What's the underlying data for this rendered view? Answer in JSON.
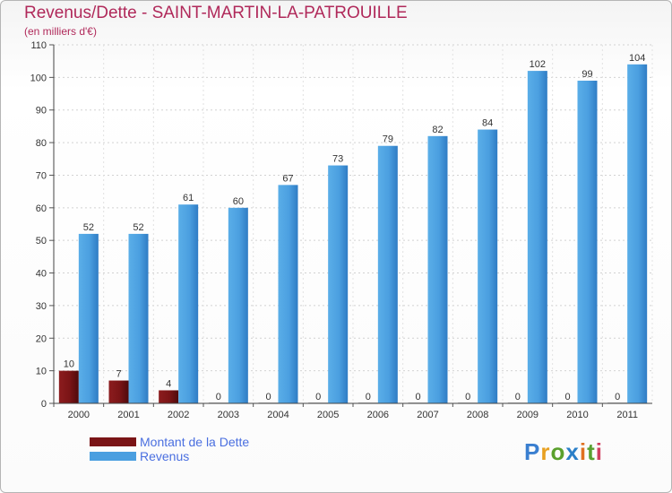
{
  "chart_data": {
    "type": "bar",
    "title": "Revenus/Dette - SAINT-MARTIN-LA-PATROUILLE",
    "subtitle": "(en milliers d'€)",
    "xlabel": "",
    "ylabel": "",
    "categories": [
      "2000",
      "2001",
      "2002",
      "2003",
      "2004",
      "2005",
      "2006",
      "2007",
      "2008",
      "2009",
      "2010",
      "2011"
    ],
    "series": [
      {
        "name": "Montant de la Dette",
        "color": "#7a1416",
        "values": [
          10,
          7,
          4,
          0,
          0,
          0,
          0,
          0,
          0,
          0,
          0,
          0
        ]
      },
      {
        "name": "Revenus",
        "color": "#4b9fe0",
        "values": [
          52,
          52,
          61,
          60,
          67,
          73,
          79,
          82,
          84,
          102,
          99,
          104
        ]
      }
    ],
    "ylim": [
      0,
      110
    ],
    "yticks": [
      0,
      10,
      20,
      30,
      40,
      50,
      60,
      70,
      80,
      90,
      100,
      110
    ],
    "grid": true,
    "legend": "bottom-left"
  },
  "brand": {
    "letters": [
      "P",
      "r",
      "o",
      "x",
      "i",
      "t",
      "i"
    ],
    "colors": [
      "#3a7fd0",
      "#e8a020",
      "#5aa02c",
      "#2a7fc8",
      "#e07020",
      "#59a030",
      "#d04060"
    ]
  }
}
